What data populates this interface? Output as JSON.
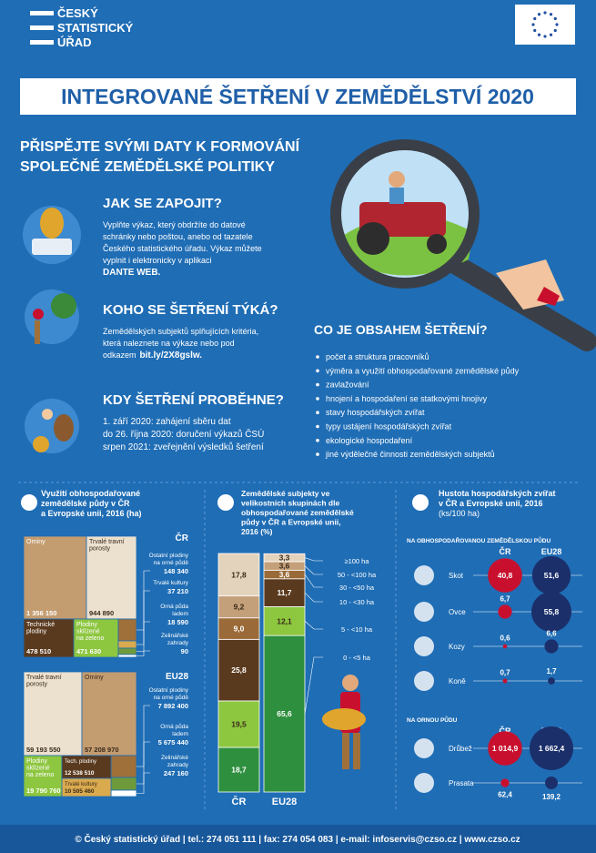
{
  "header": {
    "logo": [
      "ČESKÝ",
      "STATISTICKÝ",
      "ÚŘAD"
    ],
    "title": "INTEGROVANÉ ŠETŘENÍ V ZEMĚDĚLSTVÍ 2020",
    "subtitle": [
      "PŘISPĚJTE SVÝMI DATY K FORMOVÁNÍ",
      "SPOLEČNÉ ZEMĚDĚLSKÉ POLITIKY"
    ]
  },
  "sections": [
    {
      "heading": "JAK SE ZAPOJIT?",
      "lines": [
        "Vyplňte výkaz, který obdržíte do datové",
        "schránky  nebo poštou, anebo od tazatele",
        "Českého statistického úřadu. Výkaz můžete",
        "vyplnit i elektronicky v aplikaci"
      ],
      "bold": "DANTE WEB."
    },
    {
      "heading": "KOHO SE ŠETŘENÍ TÝKÁ?",
      "lines": [
        "Zemědělských subjektů splňujících kritéria,",
        "která naleznete na výkaze nebo pod",
        "odkazem"
      ],
      "bold": "bit.ly/2X8gslw."
    },
    {
      "heading": "KDY ŠETŘENÍ PROBĚHNE?",
      "lines": [
        "1. září 2020: zahájení sběru dat",
        "do 26. října 2020: doručení výkazů ČSÚ",
        "srpen 2021: zveřejnění výsledků šetření"
      ]
    }
  ],
  "contents": {
    "heading": "CO JE OBSAHEM ŠETŘENÍ?",
    "items": [
      "počet a struktura pracovníků",
      "výměra a využití obhospodařované zemědělské půdy",
      "zavlažování",
      "hnojení a hospodaření se statkovými hnojivy",
      "stavy hospodářských zvířat",
      "typy ustájení hospodářských zvířat",
      "ekologické hospodaření",
      "jiné výdělečné činnosti zemědělských subjektů"
    ]
  },
  "land_use": {
    "title": [
      "Využití obhospodařované",
      "zemědělské půdy v ČR",
      "a Evropské unii, 2016 (ha)"
    ],
    "regions": [
      {
        "name": "ČR",
        "items": [
          {
            "label": [
              "Orniny"
            ],
            "value": "1 356 150",
            "color": "#c39c70"
          },
          {
            "label": [
              "Trvalé travní",
              "porosty"
            ],
            "value": "944 890",
            "color": "#ece1cf"
          },
          {
            "label": [
              "Technické",
              "plodiny"
            ],
            "value": "478 510",
            "color": "#5a3a1e"
          },
          {
            "label": [
              "Plodiny",
              "sklízené",
              "na zeleno"
            ],
            "value": "471 630",
            "color": "#8dc63f"
          },
          {
            "label": [
              "Ostatní plodiny",
              "na orné půdě"
            ],
            "value": "148 340",
            "color": "#a0703a"
          },
          {
            "label": [
              "Trvalé kultury"
            ],
            "value": "37 210",
            "color": "#d9aa4e"
          },
          {
            "label": [
              "Orná půda",
              "ladem"
            ],
            "value": "18 590",
            "color": "#6e9a3c"
          },
          {
            "label": [
              "Zelinářské",
              "zahrady"
            ],
            "value": "90",
            "color": "#ffffff"
          }
        ]
      },
      {
        "name": "EU28",
        "items": [
          {
            "label": [
              "Trvalé travní",
              "porosty"
            ],
            "value": "59 193 550",
            "color": "#ece1cf"
          },
          {
            "label": [
              "Orniny"
            ],
            "value": "57 208 970",
            "color": "#c39c70"
          },
          {
            "label": [
              "Ostatní plodiny",
              "na orné půdě"
            ],
            "value": "7 892 400",
            "color": "#a0703a"
          },
          {
            "label": [
              "Orná půda",
              "ladem"
            ],
            "value": "5 675 440",
            "color": "#6e9a3c"
          },
          {
            "label": [
              "Zelinářské",
              "zahrady"
            ],
            "value": "247 160",
            "color": "#ffffff"
          },
          {
            "label": [
              "Plodiny",
              "sklízené",
              "na zeleno"
            ],
            "value": "19 790 760",
            "color": "#8dc63f"
          },
          {
            "label": [
              "Tech. plodiny"
            ],
            "value": "12 538 510",
            "color": "#5a3a1e"
          },
          {
            "label": [
              "Trvalé kultury"
            ],
            "value": "10 505 460",
            "color": "#d9aa4e"
          }
        ]
      }
    ]
  },
  "chart_data": [
    {
      "type": "stacked_bar",
      "title": [
        "Zemědělské subjekty ve",
        "velikostních skupinách dle",
        "obhospodařované zemědělské",
        "půdy v ČR a Evropské unii,",
        "2016 (%)"
      ],
      "categories": [
        "ČR",
        "EU28"
      ],
      "ylim": [
        0,
        100
      ],
      "series": [
        {
          "name": "0 - <5 ha",
          "color": "#2e8f3e",
          "values": [
            18.7,
            65.6
          ],
          "value_labels": [
            "18,7",
            "65,6"
          ]
        },
        {
          "name": "5 - <10 ha",
          "color": "#8dc63f",
          "values": [
            19.5,
            12.1
          ],
          "value_labels": [
            "19,5",
            "12,1"
          ]
        },
        {
          "name": "10 - <30 ha",
          "color": "#5a3a1e",
          "values": [
            25.8,
            11.7
          ],
          "value_labels": [
            "25,8",
            "11,7"
          ]
        },
        {
          "name": "30 - <50 ha",
          "color": "#9a6a38",
          "values": [
            9.0,
            3.6
          ],
          "value_labels": [
            "9,0",
            "3,6"
          ]
        },
        {
          "name": "50 - <100 ha",
          "color": "#c4a07a",
          "values": [
            9.2,
            3.6
          ],
          "value_labels": [
            "9,2",
            "3,6"
          ]
        },
        {
          "name": "≥100 ha",
          "color": "#e4d3bc",
          "values": [
            17.8,
            3.3
          ],
          "value_labels": [
            "17,8",
            "3,3"
          ]
        }
      ]
    },
    {
      "type": "bubble",
      "title": [
        "Hustota hospodářských zvířat",
        "v ČR a Evropské unii, 2016",
        "(ks/100 ha)"
      ],
      "subtitle": "NA OBHOSPODAŘOVANOU ZEMĚDĚLSKOU PŮDU",
      "categories": [
        "Skot",
        "Ovce",
        "Kozy",
        "Koně"
      ],
      "series": [
        {
          "name": "ČR",
          "color": "#c8102e",
          "values": [
            40.8,
            6.7,
            0.6,
            0.7
          ],
          "value_labels": [
            "40,8",
            "6,7",
            "0,6",
            "0,7"
          ]
        },
        {
          "name": "EU28",
          "color": "#1b2f6b",
          "values": [
            51.6,
            55.8,
            6.6,
            1.7
          ],
          "value_labels": [
            "51,6",
            "55,8",
            "6,6",
            "1,7"
          ]
        }
      ]
    },
    {
      "type": "bubble",
      "subtitle": "NA ORNOU PŮDU",
      "categories": [
        "Drůbež",
        "Prasata"
      ],
      "series": [
        {
          "name": "ČR",
          "color": "#c8102e",
          "values": [
            1014.9,
            62.4
          ],
          "value_labels": [
            "1 014,9",
            "62,4"
          ]
        },
        {
          "name": "EU28",
          "color": "#1b2f6b",
          "values": [
            1662.4,
            139.2
          ],
          "value_labels": [
            "1 662,4",
            "139,2"
          ]
        }
      ]
    }
  ],
  "footer": "© Český statistický úřad  |  tel.: 274 051 111  |  fax: 274 054 083  |  e-mail: infoservis@czso.cz  |  www.czso.cz"
}
